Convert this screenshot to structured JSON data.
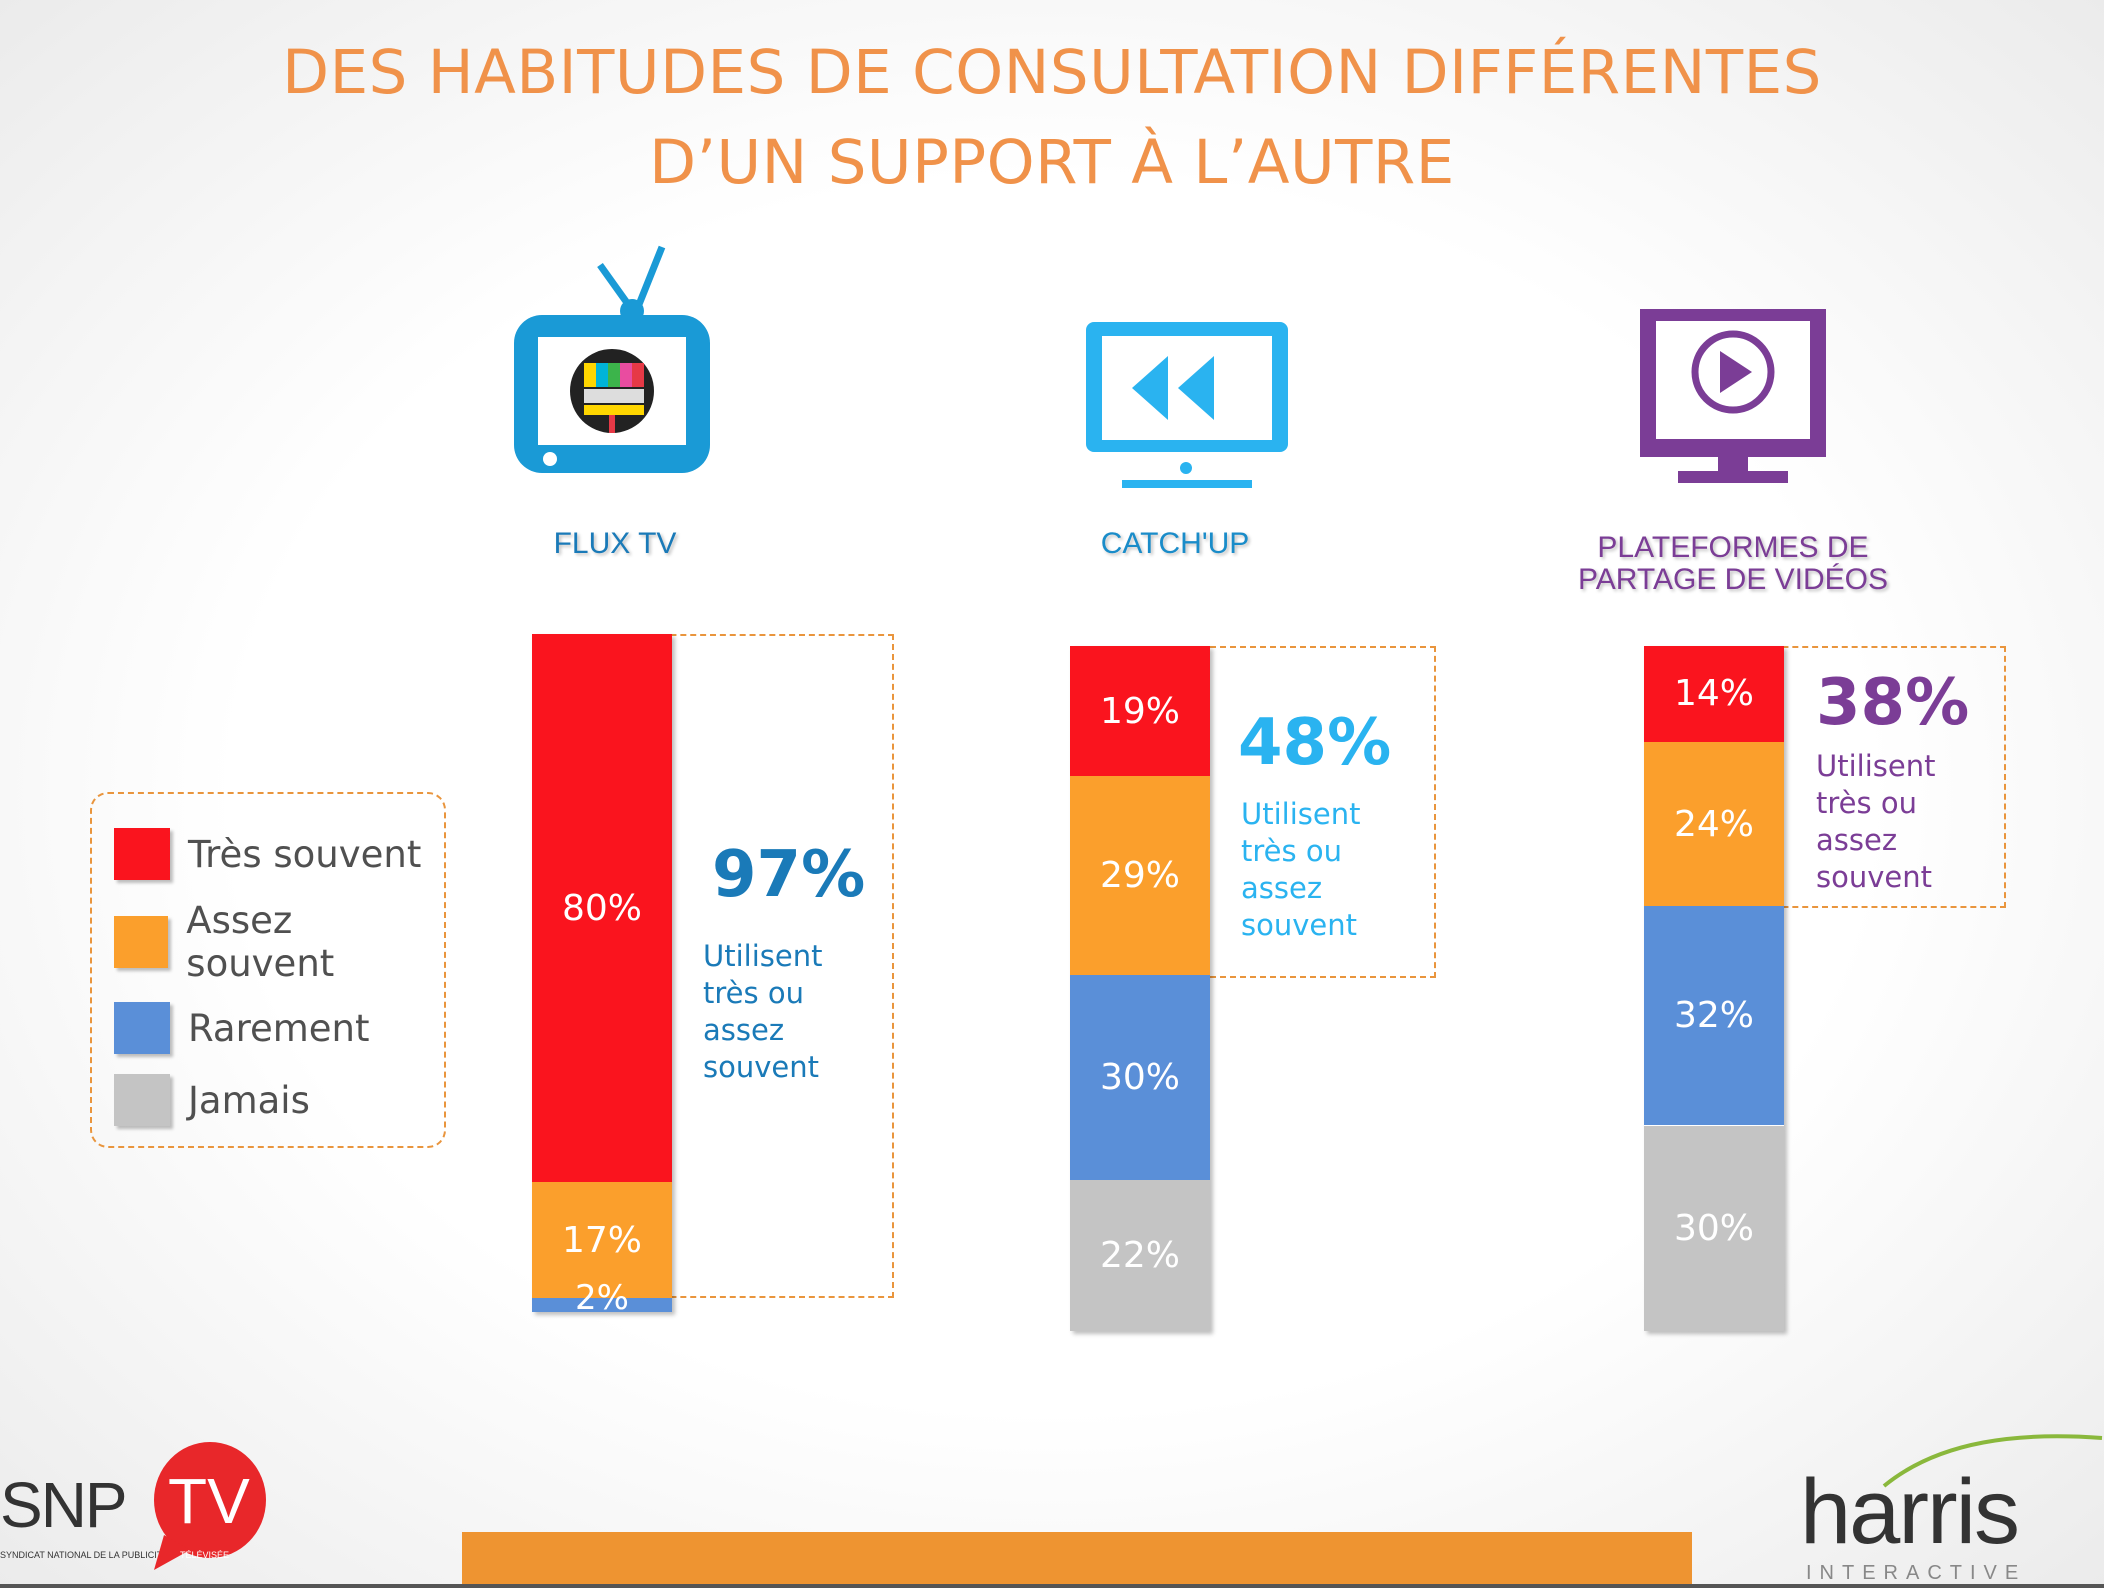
{
  "title_line1": "DES HABITUDES DE CONSULTATION DIFFÉRENTES",
  "title_line2": "D’UN SUPPORT À L’AUTRE",
  "legend": [
    {
      "label": "Très souvent",
      "color": "#fa141e"
    },
    {
      "label": "Assez souvent",
      "color": "#fb9f2c"
    },
    {
      "label": "Rarement",
      "color": "#5a8fd8"
    },
    {
      "label": "Jamais",
      "color": "#c4c4c4"
    }
  ],
  "usage_text": "Utilisent très ou assez souvent",
  "groups": [
    {
      "label": "FLUX TV",
      "color": "#1a7ab8",
      "total": "97%",
      "icon": "tv-icon"
    },
    {
      "label": "CATCH'UP",
      "color": "#2ab3f0",
      "total": "48%",
      "icon": "rewind-monitor-icon"
    },
    {
      "label": "PLATEFORMES DE PARTAGE DE VIDÉOS",
      "label_line1": "PLATEFORMES DE",
      "label_line2": "PARTAGE DE VIDÉOS",
      "color": "#7b3d96",
      "total": "38%",
      "icon": "play-monitor-icon"
    }
  ],
  "chart_data": {
    "type": "bar",
    "stacked": true,
    "categories": [
      "FLUX TV",
      "CATCH'UP",
      "PLATEFORMES DE PARTAGE DE VIDÉOS"
    ],
    "series": [
      {
        "name": "Très souvent",
        "values": [
          80,
          19,
          14
        ],
        "labels": [
          "80%",
          "19%",
          "14%"
        ]
      },
      {
        "name": "Assez souvent",
        "values": [
          17,
          29,
          24
        ],
        "labels": [
          "17%",
          "29%",
          "24%"
        ]
      },
      {
        "name": "Rarement",
        "values": [
          2,
          30,
          32
        ],
        "labels": [
          "2%",
          "30%",
          "32%"
        ]
      },
      {
        "name": "Jamais",
        "values": [
          0,
          22,
          30
        ],
        "labels": [
          "",
          "22%",
          "30%"
        ]
      }
    ],
    "totals_label": [
      "97%",
      "48%",
      "38%"
    ],
    "unit": "%"
  },
  "footer": {
    "snp_text": "SNP",
    "tv_text": "TV",
    "snp_sub": "SYNDICAT NATIONAL DE LA PUBLICITÉ",
    "tv_sub": "TÉLÉVISÉE",
    "harris_text": "harris",
    "harris_sub": "INTERACTIVE"
  }
}
